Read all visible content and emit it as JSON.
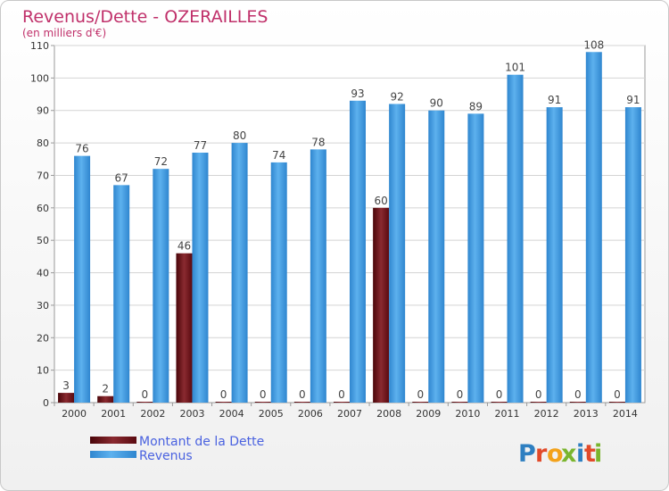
{
  "chart_data": {
    "type": "bar",
    "title": "Revenus/Dette - OZERAILLES",
    "subtitle": "(en milliers d'€)",
    "categories": [
      "2000",
      "2001",
      "2002",
      "2003",
      "2004",
      "2005",
      "2006",
      "2007",
      "2008",
      "2009",
      "2010",
      "2011",
      "2012",
      "2013",
      "2014"
    ],
    "series": [
      {
        "name": "Montant de la Dette",
        "color": "#6b0a12",
        "values": [
          3,
          2,
          0,
          46,
          0,
          0,
          0,
          0,
          60,
          0,
          0,
          0,
          0,
          0,
          0
        ]
      },
      {
        "name": "Revenus",
        "color": "#3d97dd",
        "values": [
          76,
          67,
          72,
          77,
          80,
          74,
          78,
          93,
          92,
          90,
          89,
          101,
          91,
          108,
          91
        ]
      }
    ],
    "ylim": [
      0,
      110
    ],
    "yticks": [
      0,
      10,
      20,
      30,
      40,
      50,
      60,
      70,
      80,
      90,
      100,
      110
    ],
    "grid": true,
    "legend_position": "bottom-left"
  },
  "brand": {
    "letters": [
      "P",
      "r",
      "o",
      "x",
      "i",
      "t",
      "i"
    ],
    "colors": [
      "#2e7fc1",
      "#e24a2a",
      "#f3a21b",
      "#7ab52e",
      "#2e7fc1",
      "#e24a2a",
      "#7ab52e"
    ]
  }
}
